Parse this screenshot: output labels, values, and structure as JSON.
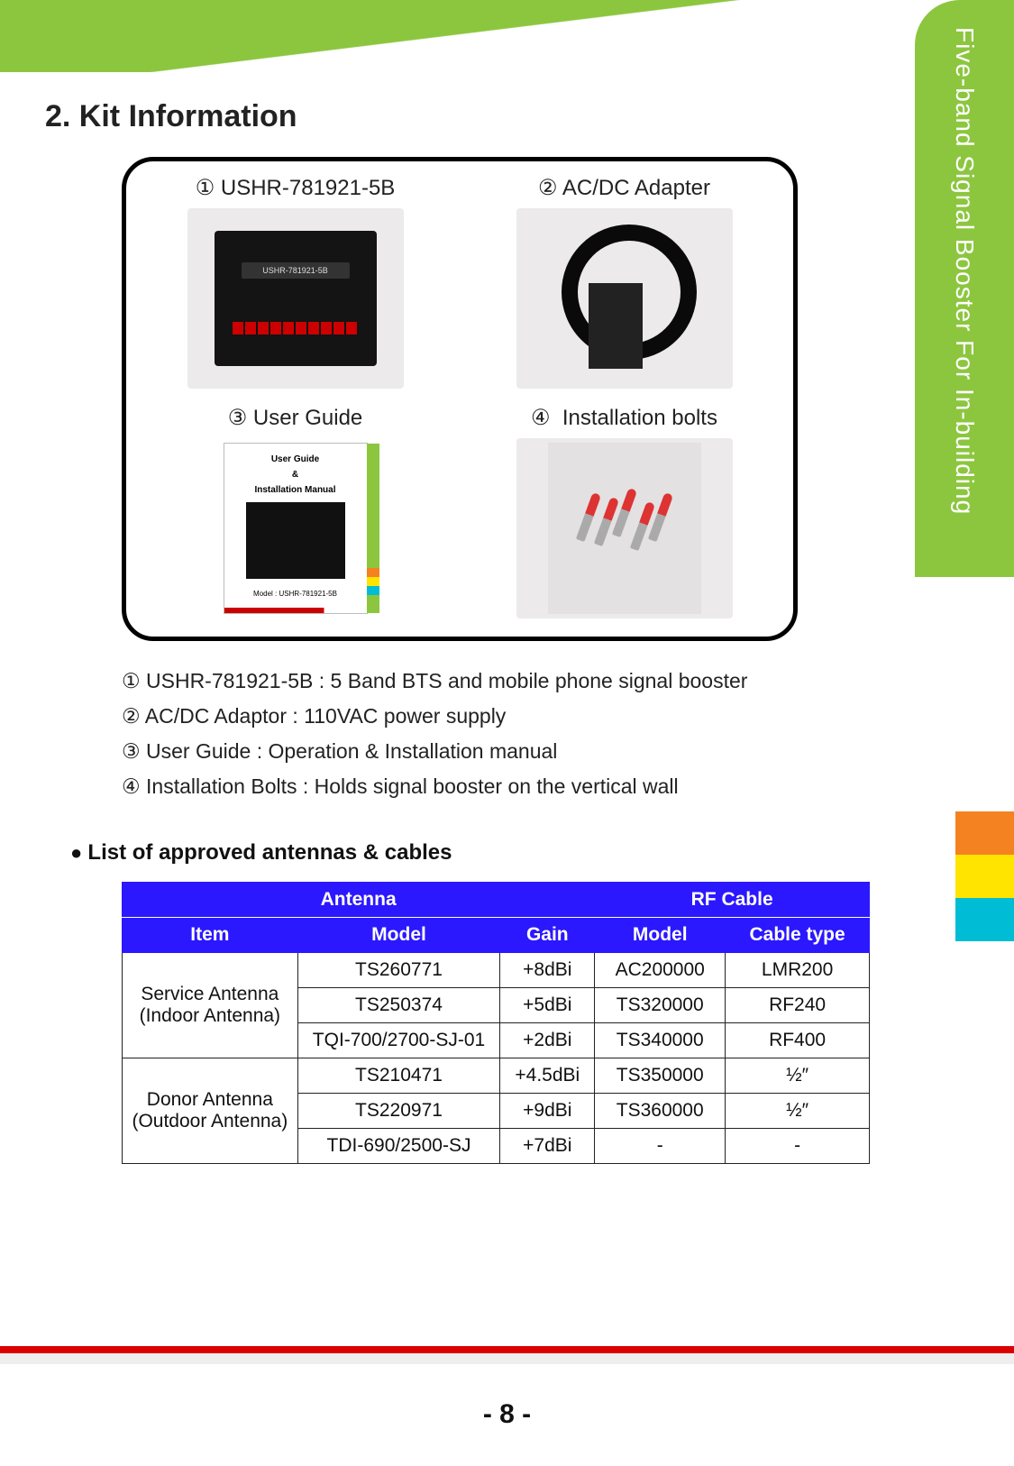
{
  "sidebar": {
    "title": "Five-band Signal Booster For In-building",
    "bg_color": "#8cc63f",
    "text_color": "#ffffff",
    "chip_colors": [
      "#f58220",
      "#ffe400",
      "#00bcd4"
    ]
  },
  "heading": "2. Kit Information",
  "kit": {
    "items": [
      {
        "num": "①",
        "label": "USHR-781921-5B"
      },
      {
        "num": "②",
        "label": "AC/DC Adapter"
      },
      {
        "num": "③",
        "label": "User Guide"
      },
      {
        "num": "④",
        "label": "Installation bolts"
      }
    ],
    "device_model": "USHR-781921-5B",
    "guide_title_1": "User Guide",
    "guide_title_2": "&",
    "guide_title_3": "Installation Manual",
    "guide_model": "Model : USHR-781921-5B"
  },
  "descriptions": [
    "① USHR-781921-5B : 5 Band BTS and mobile phone signal booster",
    "② AC/DC Adaptor : 110VAC power supply",
    "③ User Guide : Operation & Installation manual",
    "④ Installation Bolts : Holds signal booster on the vertical wall"
  ],
  "list_heading": "List of approved antennas & cables",
  "table": {
    "header_bg": "#2b18ff",
    "header_fg": "#ffffff",
    "group_headers": {
      "antenna": "Antenna",
      "rfcable": "RF Cable"
    },
    "col_headers": {
      "item": "Item",
      "model_a": "Model",
      "gain": "Gain",
      "model_c": "Model",
      "cable_type": "Cable type"
    },
    "groups": [
      {
        "item": "Service Antenna\n(Indoor Antenna)",
        "rows": [
          {
            "model_a": "TS260771",
            "gain": "+8dBi",
            "model_c": "AC200000",
            "cable": "LMR200"
          },
          {
            "model_a": "TS250374",
            "gain": "+5dBi",
            "model_c": "TS320000",
            "cable": "RF240"
          },
          {
            "model_a": "TQI-700/2700-SJ-01",
            "gain": "+2dBi",
            "model_c": "TS340000",
            "cable": "RF400"
          }
        ]
      },
      {
        "item": "Donor Antenna\n(Outdoor Antenna)",
        "rows": [
          {
            "model_a": "TS210471",
            "gain": "+4.5dBi",
            "model_c": "TS350000",
            "cable": "½″"
          },
          {
            "model_a": "TS220971",
            "gain": "+9dBi",
            "model_c": "TS360000",
            "cable": "½″"
          },
          {
            "model_a": "TDI-690/2500-SJ",
            "gain": "+7dBi",
            "model_c": "-",
            "cable": "-"
          }
        ]
      }
    ]
  },
  "footer": {
    "red": "#d00000",
    "page": "- 8 -"
  }
}
